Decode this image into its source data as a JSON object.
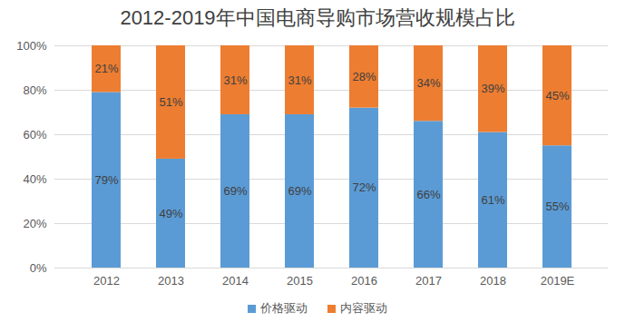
{
  "chart_data": {
    "type": "bar",
    "title": "2012-2019年中国电商导购市场营收规模占比",
    "categories": [
      "2012",
      "2013",
      "2014",
      "2015",
      "2016",
      "2017",
      "2018",
      "2019E"
    ],
    "series": [
      {
        "name": "价格驱动",
        "color": "#5b9bd5",
        "values": [
          79,
          49,
          69,
          69,
          72,
          66,
          61,
          55
        ],
        "value_labels": [
          "79%",
          "49%",
          "69%",
          "69%",
          "72%",
          "66%",
          "61%",
          "55%"
        ]
      },
      {
        "name": "内容驱动",
        "color": "#ed7d31",
        "values": [
          21,
          51,
          31,
          31,
          28,
          34,
          39,
          45
        ],
        "value_labels": [
          "21%",
          "51%",
          "31%",
          "31%",
          "28%",
          "34%",
          "39%",
          "45%"
        ]
      }
    ],
    "ylim": [
      0,
      100
    ],
    "yticks": [
      {
        "value": 0,
        "label": "0%"
      },
      {
        "value": 20,
        "label": "20%"
      },
      {
        "value": 40,
        "label": "40%"
      },
      {
        "value": 60,
        "label": "60%"
      },
      {
        "value": 80,
        "label": "80%"
      },
      {
        "value": 100,
        "label": "100%"
      }
    ],
    "stacked": true,
    "grid": true,
    "data_labels": true,
    "legend": "bottom"
  }
}
